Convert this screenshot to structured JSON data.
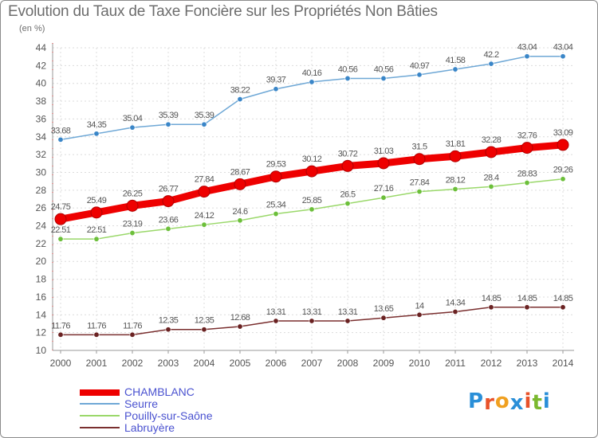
{
  "title": "Evolution du Taux de Taxe Foncière sur les Propriétés Non Bâties",
  "unit_label": "(en %)",
  "logo": {
    "letters": [
      "P",
      "r",
      "o",
      "x",
      "i",
      "t",
      "i"
    ],
    "colors": [
      "#2a8fd8",
      "#e8522a",
      "#f0a020",
      "#2a8fd8",
      "#e8522a",
      "#7ab82e",
      "#2a8fd8"
    ]
  },
  "chart_data": {
    "type": "line",
    "title": "Evolution du Taux de Taxe Foncière sur les Propriétés Non Bâties",
    "ylabel": "(en %)",
    "xlabel": "",
    "ylim": [
      10,
      44
    ],
    "yticks": [
      "10",
      "12",
      "14",
      "16",
      "18",
      "20",
      "22",
      "24",
      "26",
      "28",
      "30",
      "32",
      "34",
      "36",
      "38",
      "40",
      "42",
      "44"
    ],
    "x": [
      "2000",
      "2001",
      "2002",
      "2003",
      "2004",
      "2005",
      "2006",
      "2007",
      "2008",
      "2009",
      "2010",
      "2011",
      "2012",
      "2013",
      "2014"
    ],
    "grid": true,
    "series": [
      {
        "name": "CHAMBLANC",
        "color": "#ee0000",
        "marker": "#cc0000",
        "emphasis": true,
        "values": [
          24.75,
          25.49,
          26.25,
          26.77,
          27.84,
          28.67,
          29.53,
          30.12,
          30.72,
          31.03,
          31.5,
          31.81,
          32.28,
          32.76,
          33.09
        ],
        "labels": [
          "24.75",
          "25.49",
          "26.25",
          "26.77",
          "27.84",
          "28.67",
          "29.53",
          "30.12",
          "30.72",
          "31.03",
          "31.5",
          "31.81",
          "32.28",
          "32.76",
          "33.09"
        ]
      },
      {
        "name": "Seurre",
        "color": "#6fa8d6",
        "marker": "#3a86c8",
        "emphasis": false,
        "values": [
          33.68,
          34.35,
          35.04,
          35.39,
          35.39,
          38.22,
          39.37,
          40.16,
          40.56,
          40.56,
          40.97,
          41.58,
          42.2,
          43.04,
          43.04
        ],
        "labels": [
          "33.68",
          "34.35",
          "35.04",
          "35.39",
          "35.39",
          "38.22",
          "39.37",
          "40.16",
          "40.56",
          "40.56",
          "40.97",
          "41.58",
          "42.2",
          "43.04",
          "43.04"
        ]
      },
      {
        "name": "Pouilly-sur-Saône",
        "color": "#9ad86a",
        "marker": "#6cbf3a",
        "emphasis": false,
        "values": [
          22.51,
          22.51,
          23.19,
          23.66,
          24.12,
          24.6,
          25.34,
          25.85,
          26.5,
          27.16,
          27.84,
          28.12,
          28.4,
          28.83,
          29.26
        ],
        "labels": [
          "22.51",
          "22.51",
          "23.19",
          "23.66",
          "24.12",
          "24.6",
          "25.34",
          "25.85",
          "26.5",
          "27.16",
          "27.84",
          "28.12",
          "28.4",
          "28.83",
          "29.26"
        ]
      },
      {
        "name": "Labruyère",
        "color": "#7a2f2f",
        "marker": "#6a2222",
        "emphasis": false,
        "values": [
          11.76,
          11.76,
          11.76,
          12.35,
          12.35,
          12.68,
          13.31,
          13.31,
          13.31,
          13.65,
          14.0,
          14.34,
          14.85,
          14.85,
          14.85
        ],
        "labels": [
          "11.76",
          "11.76",
          "11.76",
          "12.35",
          "12.35",
          "12.68",
          "13.31",
          "13.31",
          "13.31",
          "13.65",
          "14",
          "14.34",
          "14.85",
          "14.85",
          "14.85"
        ]
      }
    ],
    "legend": [
      "CHAMBLANC",
      "Seurre",
      "Pouilly-sur-Saône",
      "Labruyère"
    ],
    "legend_position": "bottom-left"
  }
}
